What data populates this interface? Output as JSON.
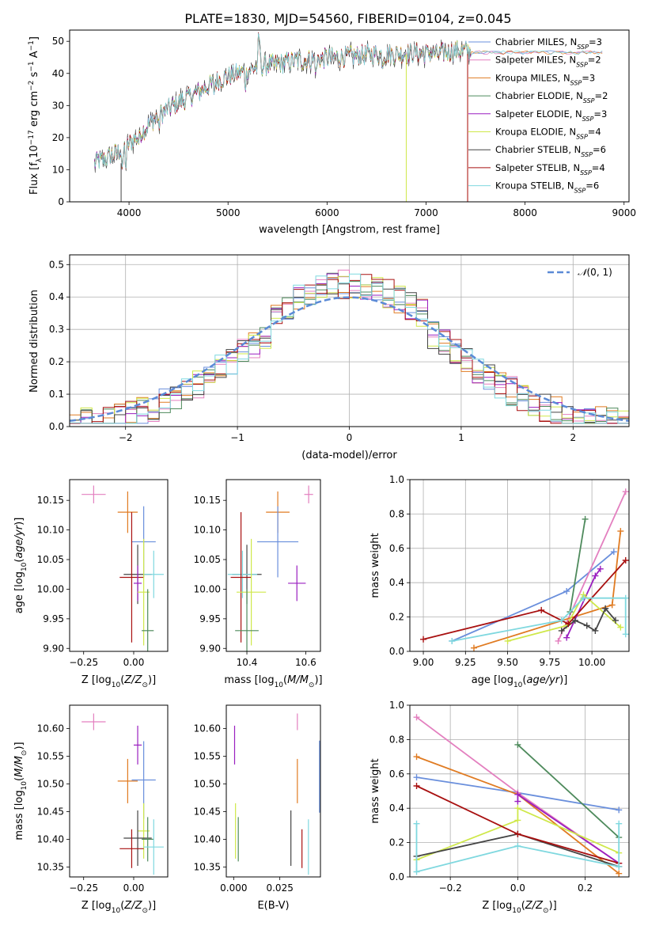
{
  "figure_title": "PLATE=1830, MJD=54560, FIBERID=0104, z=0.045",
  "colors": {
    "Chabrier MILES": "#6a8fdc",
    "Salpeter MILES": "#e37fbf",
    "Kroupa MILES": "#e07b22",
    "Chabrier ELODIE": "#4e8a5c",
    "Salpeter ELODIE": "#9a1fc0",
    "Kroupa ELODIE": "#cfe84a",
    "Chabrier STELIB": "#444444",
    "Salpeter STELIB": "#a81010",
    "Kroupa STELIB": "#7fd8df"
  },
  "chart_data": [
    {
      "id": "spectrum",
      "type": "line",
      "title": "PLATE=1830, MJD=54560, FIBERID=0104, z=0.045",
      "xlabel": "wavelength [Angstrom, rest frame]",
      "ylabel": "Flux [f_λ 10^-17 erg cm^-2 s^-1 A^-1]",
      "xlim": [
        3400,
        9050
      ],
      "ylim": [
        0,
        53.5
      ],
      "xticks": [
        4000,
        5000,
        6000,
        7000,
        8000,
        9000
      ],
      "yticks": [
        0,
        10,
        20,
        30,
        40,
        50
      ],
      "legend_placement": "top-right",
      "legend": [
        "Chabrier MILES, N_SSP=3",
        "Salpeter MILES, N_SSP=2",
        "Kroupa MILES, N_SSP=3",
        "Chabrier ELODIE, N_SSP=2",
        "Salpeter ELODIE, N_SSP=3",
        "Kroupa ELODIE, N_SSP=4",
        "Chabrier STELIB, N_SSP=6",
        "Salpeter STELIB, N_SSP=4",
        "Kroupa STELIB, N_SSP=6"
      ],
      "continuum": {
        "x": [
          3650,
          3800,
          3920,
          4000,
          4100,
          4300,
          4500,
          4700,
          4900,
          5100,
          5300,
          5500,
          5700,
          5900,
          6100,
          6300,
          6500,
          6700,
          6900,
          7100,
          7300,
          7450
        ],
        "y": [
          12,
          14,
          16,
          18,
          21,
          27,
          31,
          34,
          38,
          40,
          42,
          43,
          44,
          44.5,
          45,
          45.5,
          46,
          46,
          46.5,
          46,
          47,
          47
        ]
      },
      "extended_model_to": 8800,
      "dropouts_to_zero": [
        3920,
        6800,
        7420
      ]
    },
    {
      "id": "residuals",
      "type": "line",
      "xlabel": "(data-model)/error",
      "ylabel": "Normed distribution",
      "xlim": [
        -2.5,
        2.5
      ],
      "ylim": [
        0,
        0.53
      ],
      "xticks": [
        -2,
        -1,
        0,
        1,
        2
      ],
      "yticks": [
        0.0,
        0.1,
        0.2,
        0.3,
        0.4,
        0.5
      ],
      "grid": true,
      "legend": [
        "N(0,1)"
      ],
      "legend_placement": "top-right",
      "bin_width": 0.1,
      "normal_curve": {
        "mean": 0,
        "sigma": 1
      }
    },
    {
      "id": "age_vs_Z",
      "type": "scatter",
      "xlabel": "Z [log10(Z/Z☉)]",
      "ylabel": "age  [log10(age/yr)]",
      "xlim": [
        -0.32,
        0.17
      ],
      "ylim": [
        9.895,
        10.185
      ],
      "xticks": [
        -0.25,
        0.0
      ],
      "yticks": [
        9.9,
        9.95,
        10.0,
        10.05,
        10.1,
        10.15
      ],
      "points": [
        {
          "series": "Salpeter MILES",
          "x": -0.2,
          "y": 10.16,
          "xerr": 0.06,
          "yerr": 0.015
        },
        {
          "series": "Kroupa MILES",
          "x": -0.03,
          "y": 10.13,
          "xerr": 0.05,
          "yerr": 0.035
        },
        {
          "series": "Chabrier MILES",
          "x": 0.05,
          "y": 10.08,
          "xerr": 0.06,
          "yerr": 0.06
        },
        {
          "series": "Chabrier STELIB",
          "x": 0.02,
          "y": 10.025,
          "xerr": 0.07,
          "yerr": 0.05
        },
        {
          "series": "Kroupa STELIB",
          "x": 0.1,
          "y": 10.025,
          "xerr": 0.05,
          "yerr": 0.04
        },
        {
          "series": "Salpeter STELIB",
          "x": -0.01,
          "y": 10.02,
          "xerr": 0.06,
          "yerr": 0.11
        },
        {
          "series": "Salpeter ELODIE",
          "x": 0.02,
          "y": 10.01,
          "xerr": 0.02,
          "yerr": 0.03
        },
        {
          "series": "Kroupa ELODIE",
          "x": 0.05,
          "y": 9.995,
          "xerr": 0.03,
          "yerr": 0.09
        },
        {
          "series": "Chabrier ELODIE",
          "x": 0.07,
          "y": 9.93,
          "xerr": 0.03,
          "yerr": 0.07
        }
      ]
    },
    {
      "id": "age_vs_mass",
      "type": "scatter",
      "xlabel": "mass [log10(M/M☉)]",
      "ylabel": "",
      "xlim": [
        10.33,
        10.65
      ],
      "ylim": [
        9.895,
        10.185
      ],
      "xticks": [
        10.4,
        10.6
      ],
      "yticks": [
        9.9,
        9.95,
        10.0,
        10.05,
        10.1,
        10.15
      ],
      "points": [
        {
          "series": "Salpeter MILES",
          "x": 10.61,
          "y": 10.16,
          "xerr": 0.015,
          "yerr": 0.015
        },
        {
          "series": "Kroupa MILES",
          "x": 10.505,
          "y": 10.13,
          "xerr": 0.04,
          "yerr": 0.035
        },
        {
          "series": "Chabrier MILES",
          "x": 10.505,
          "y": 10.08,
          "xerr": 0.07,
          "yerr": 0.06
        },
        {
          "series": "Chabrier STELIB",
          "x": 10.4,
          "y": 10.025,
          "xerr": 0.05,
          "yerr": 0.05
        },
        {
          "series": "Kroupa STELIB",
          "x": 10.385,
          "y": 10.025,
          "xerr": 0.05,
          "yerr": 0.04
        },
        {
          "series": "Salpeter STELIB",
          "x": 10.38,
          "y": 10.02,
          "xerr": 0.035,
          "yerr": 0.11
        },
        {
          "series": "Salpeter ELODIE",
          "x": 10.57,
          "y": 10.01,
          "xerr": 0.03,
          "yerr": 0.03
        },
        {
          "series": "Kroupa ELODIE",
          "x": 10.415,
          "y": 9.995,
          "xerr": 0.05,
          "yerr": 0.09
        },
        {
          "series": "Chabrier ELODIE",
          "x": 10.4,
          "y": 9.93,
          "xerr": 0.04,
          "yerr": 0.07
        }
      ]
    },
    {
      "id": "mass_weight_vs_age",
      "type": "line",
      "xlabel": "age  [log10(age/yr)]",
      "ylabel": "mass weight",
      "xlim": [
        8.92,
        10.22
      ],
      "ylim": [
        0,
        1
      ],
      "xticks": [
        9.0,
        9.25,
        9.5,
        9.75,
        10.0
      ],
      "yticks": [
        0.0,
        0.2,
        0.4,
        0.6,
        0.8,
        1.0
      ],
      "grid": true,
      "series": [
        {
          "name": "Chabrier MILES",
          "x": [
            9.17,
            9.85,
            10.13
          ],
          "y": [
            0.06,
            0.35,
            0.58
          ]
        },
        {
          "name": "Salpeter MILES",
          "x": [
            9.8,
            10.2
          ],
          "y": [
            0.06,
            0.93
          ]
        },
        {
          "name": "Kroupa MILES",
          "x": [
            9.3,
            10.12,
            10.17
          ],
          "y": [
            0.02,
            0.27,
            0.7
          ]
        },
        {
          "name": "Chabrier ELODIE",
          "x": [
            9.87,
            9.96
          ],
          "y": [
            0.23,
            0.77
          ]
        },
        {
          "name": "Salpeter ELODIE",
          "x": [
            9.85,
            10.02,
            10.05
          ],
          "y": [
            0.08,
            0.44,
            0.48
          ]
        },
        {
          "name": "Kroupa ELODIE",
          "x": [
            9.5,
            9.85,
            9.95,
            10.17
          ],
          "y": [
            0.06,
            0.15,
            0.33,
            0.14
          ]
        },
        {
          "name": "Chabrier STELIB",
          "x": [
            9.82,
            9.9,
            9.97,
            10.02,
            10.08,
            10.14
          ],
          "y": [
            0.12,
            0.18,
            0.15,
            0.12,
            0.25,
            0.18
          ]
        },
        {
          "name": "Salpeter STELIB",
          "x": [
            9.0,
            9.7,
            9.86,
            10.2
          ],
          "y": [
            0.07,
            0.24,
            0.16,
            0.53
          ]
        },
        {
          "name": "Kroupa STELIB",
          "x": [
            9.17,
            9.82,
            9.95,
            10.2,
            10.2
          ],
          "y": [
            0.06,
            0.18,
            0.31,
            0.31,
            0.1
          ]
        }
      ]
    },
    {
      "id": "mass_vs_Z",
      "type": "scatter",
      "xlabel": "Z [log10(Z/Z☉)]",
      "ylabel": "mass [log10(M/M☉)]",
      "xlim": [
        -0.32,
        0.17
      ],
      "ylim": [
        10.332,
        10.642
      ],
      "xticks": [
        -0.25,
        0.0
      ],
      "yticks": [
        10.35,
        10.4,
        10.45,
        10.5,
        10.55,
        10.6
      ],
      "points": [
        {
          "series": "Salpeter MILES",
          "x": -0.2,
          "y": 10.612,
          "xerr": 0.06,
          "yerr": 0.015
        },
        {
          "series": "Salpeter ELODIE",
          "x": 0.02,
          "y": 10.57,
          "xerr": 0.02,
          "yerr": 0.035
        },
        {
          "series": "Kroupa MILES",
          "x": -0.03,
          "y": 10.505,
          "xerr": 0.05,
          "yerr": 0.04
        },
        {
          "series": "Chabrier MILES",
          "x": 0.05,
          "y": 10.507,
          "xerr": 0.06,
          "yerr": 0.07
        },
        {
          "series": "Kroupa ELODIE",
          "x": 0.05,
          "y": 10.415,
          "xerr": 0.03,
          "yerr": 0.05
        },
        {
          "series": "Chabrier STELIB",
          "x": 0.02,
          "y": 10.402,
          "xerr": 0.07,
          "yerr": 0.05
        },
        {
          "series": "Chabrier ELODIE",
          "x": 0.07,
          "y": 10.4,
          "xerr": 0.03,
          "yerr": 0.04
        },
        {
          "series": "Kroupa STELIB",
          "x": 0.1,
          "y": 10.386,
          "xerr": 0.05,
          "yerr": 0.05
        },
        {
          "series": "Salpeter STELIB",
          "x": -0.01,
          "y": 10.383,
          "xerr": 0.06,
          "yerr": 0.035
        }
      ]
    },
    {
      "id": "mass_vs_ebv",
      "type": "scatter",
      "xlabel": "E(B-V)",
      "ylabel": "",
      "xlim": [
        -0.004,
        0.047
      ],
      "ylim": [
        10.332,
        10.642
      ],
      "xticks": [
        0.0,
        0.025
      ],
      "xtick_labels": [
        "0.000",
        "0.025"
      ],
      "yticks": [
        10.35,
        10.4,
        10.45,
        10.5,
        10.55,
        10.6
      ],
      "points": [
        {
          "series": "Salpeter ELODIE",
          "x": 0.0005,
          "y": 10.57,
          "yerr": 0.035
        },
        {
          "series": "Kroupa ELODIE",
          "x": 0.001,
          "y": 10.415,
          "yerr": 0.05
        },
        {
          "series": "Chabrier ELODIE",
          "x": 0.0025,
          "y": 10.4,
          "yerr": 0.04
        },
        {
          "series": "Salpeter MILES",
          "x": 0.0345,
          "y": 10.612,
          "yerr": 0.015
        },
        {
          "series": "Kroupa MILES",
          "x": 0.0345,
          "y": 10.505,
          "yerr": 0.04
        },
        {
          "series": "Chabrier STELIB",
          "x": 0.031,
          "y": 10.402,
          "yerr": 0.05
        },
        {
          "series": "Salpeter STELIB",
          "x": 0.037,
          "y": 10.383,
          "yerr": 0.035
        },
        {
          "series": "Kroupa STELIB",
          "x": 0.0405,
          "y": 10.386,
          "yerr": 0.05
        },
        {
          "series": "Chabrier MILES",
          "x": 0.0465,
          "y": 10.513,
          "yerr": 0.065
        }
      ]
    },
    {
      "id": "mass_weight_vs_Z",
      "type": "line",
      "xlabel": "Z [log10(Z/Z☉)]",
      "ylabel": "mass weight",
      "xlim": [
        -0.32,
        0.33
      ],
      "ylim": [
        0,
        1
      ],
      "xticks": [
        -0.2,
        0.0,
        0.2
      ],
      "yticks": [
        0.0,
        0.2,
        0.4,
        0.6,
        0.8,
        1.0
      ],
      "grid": true,
      "series": [
        {
          "name": "Chabrier MILES",
          "x": [
            -0.3,
            0.0,
            0.3
          ],
          "y": [
            0.58,
            0.49,
            0.39
          ]
        },
        {
          "name": "Salpeter MILES",
          "x": [
            -0.3,
            0.0,
            0.3
          ],
          "y": [
            0.93,
            0.49,
            0.08
          ]
        },
        {
          "name": "Kroupa MILES",
          "x": [
            -0.3,
            0.0,
            0.3
          ],
          "y": [
            0.7,
            0.48,
            0.02
          ]
        },
        {
          "name": "Chabrier ELODIE",
          "x": [
            0.0,
            0.3
          ],
          "y": [
            0.77,
            0.23
          ]
        },
        {
          "name": "Salpeter ELODIE",
          "x": [
            0.0,
            0.0,
            0.3
          ],
          "y": [
            0.44,
            0.48,
            0.08
          ]
        },
        {
          "name": "Kroupa ELODIE",
          "x": [
            -0.3,
            0.0,
            0.0,
            0.3
          ],
          "y": [
            0.1,
            0.33,
            0.4,
            0.14
          ]
        },
        {
          "name": "Chabrier STELIB",
          "x": [
            -0.3,
            0.0,
            0.3
          ],
          "y": [
            0.12,
            0.25,
            0.06
          ]
        },
        {
          "name": "Salpeter STELIB",
          "x": [
            -0.3,
            0.0,
            0.3
          ],
          "y": [
            0.53,
            0.25,
            0.08
          ]
        },
        {
          "name": "Kroupa STELIB",
          "x": [
            -0.3,
            -0.3,
            0.0,
            0.3,
            0.3
          ],
          "y": [
            0.31,
            0.03,
            0.18,
            0.06,
            0.31
          ]
        }
      ]
    }
  ]
}
